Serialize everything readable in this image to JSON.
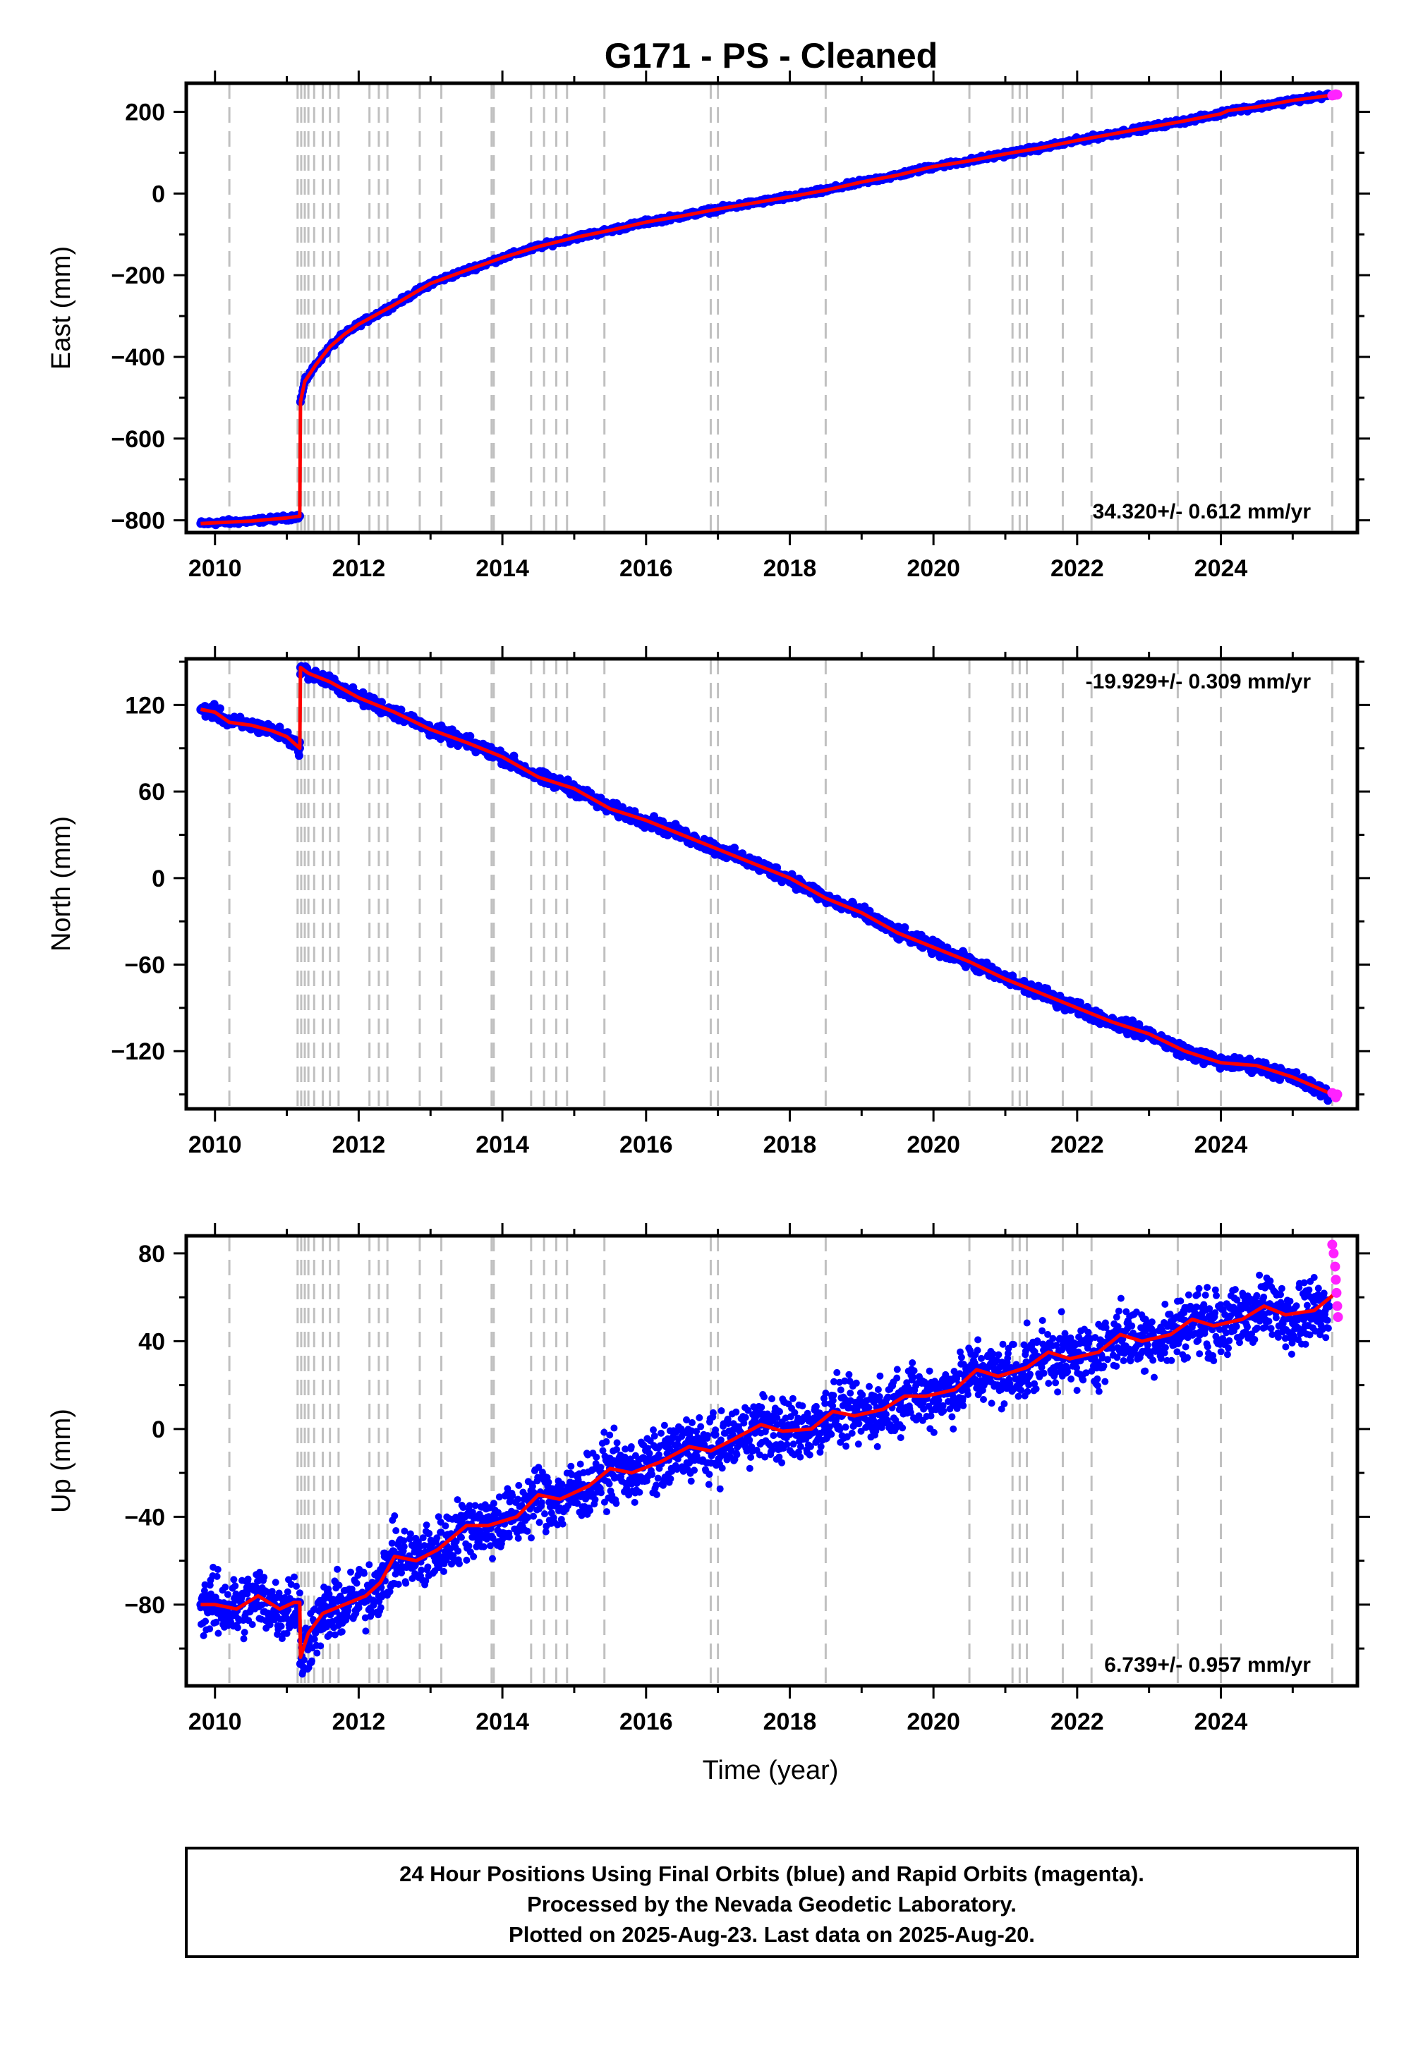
{
  "title": "G171  - PS - Cleaned",
  "colors": {
    "final_orbits": "#0000ff",
    "rapid_orbits": "#ff22ff",
    "model": "#ff0000",
    "events": "#c0c0c0"
  },
  "chart_data": [
    {
      "type": "scatter",
      "panel": "east",
      "ylabel": "East (mm)",
      "xlabel": "",
      "xlim": [
        2009.6,
        2025.9
      ],
      "ylim": [
        -830,
        270
      ],
      "xticks": [
        2010,
        2012,
        2014,
        2016,
        2018,
        2020,
        2022,
        2024
      ],
      "yticks": [
        -800,
        -600,
        -400,
        -200,
        0,
        200
      ],
      "rate_label": "34.320+/- 0.612 mm/yr",
      "rate_position": "bottom-right",
      "series": [
        {
          "name": "24 Hour Positions (final orbits)",
          "color": "#0000ff",
          "x": [
            2009.8,
            2010.0,
            2010.5,
            2011.0,
            2011.18,
            2011.19,
            2011.25,
            2011.4,
            2011.6,
            2011.8,
            2012.0,
            2012.5,
            2013.0,
            2013.5,
            2014.0,
            2014.5,
            2015.0,
            2015.5,
            2016.0,
            2016.5,
            2017.0,
            2017.5,
            2018.0,
            2018.5,
            2019.0,
            2019.5,
            2020.0,
            2020.5,
            2021.0,
            2021.5,
            2022.0,
            2022.5,
            2023.0,
            2023.5,
            2024.0,
            2024.1,
            2024.5,
            2025.0,
            2025.5
          ],
          "y": [
            -808,
            -806,
            -802,
            -794,
            -790,
            -510,
            -460,
            -420,
            -375,
            -345,
            -320,
            -272,
            -220,
            -188,
            -157,
            -130,
            -108,
            -90,
            -70,
            -55,
            -38,
            -23,
            -8,
            8,
            28,
            45,
            66,
            80,
            97,
            112,
            130,
            146,
            162,
            178,
            195,
            203,
            212,
            228,
            240
          ]
        },
        {
          "name": "24 Hour Positions (rapid orbits)",
          "color": "#ff22ff",
          "x": [
            2025.55,
            2025.58,
            2025.6,
            2025.62
          ],
          "y": [
            240,
            241,
            243,
            242
          ]
        },
        {
          "name": "model",
          "color": "#ff0000",
          "x": [
            2009.8,
            2010.0,
            2010.5,
            2011.0,
            2011.18,
            2011.19,
            2011.25,
            2011.4,
            2011.6,
            2011.8,
            2012.0,
            2012.5,
            2013.0,
            2013.5,
            2014.0,
            2014.5,
            2015.0,
            2015.5,
            2016.0,
            2016.5,
            2017.0,
            2017.5,
            2018.0,
            2018.5,
            2019.0,
            2019.5,
            2020.0,
            2020.5,
            2021.0,
            2021.5,
            2022.0,
            2022.5,
            2023.0,
            2023.5,
            2024.0,
            2024.1,
            2024.5,
            2025.0,
            2025.6
          ],
          "y": [
            -808,
            -806,
            -802,
            -794,
            -790,
            -510,
            -460,
            -420,
            -375,
            -345,
            -320,
            -272,
            -220,
            -188,
            -157,
            -130,
            -108,
            -90,
            -70,
            -55,
            -38,
            -23,
            -8,
            8,
            28,
            45,
            66,
            80,
            97,
            112,
            130,
            146,
            162,
            178,
            195,
            203,
            212,
            228,
            242
          ]
        }
      ]
    },
    {
      "type": "scatter",
      "panel": "north",
      "ylabel": "North (mm)",
      "xlabel": "",
      "xlim": [
        2009.6,
        2025.9
      ],
      "ylim": [
        -160,
        152
      ],
      "xticks": [
        2010,
        2012,
        2014,
        2016,
        2018,
        2020,
        2022,
        2024
      ],
      "yticks": [
        -120,
        -60,
        0,
        60,
        120
      ],
      "rate_label": "-19.929+/- 0.309 mm/yr",
      "rate_position": "top-right",
      "series": [
        {
          "name": "24 Hour Positions (final orbits)",
          "color": "#0000ff",
          "x": [
            2009.8,
            2010.0,
            2010.2,
            2010.5,
            2010.8,
            2011.0,
            2011.18,
            2011.19,
            2011.3,
            2011.6,
            2012.0,
            2012.5,
            2013.0,
            2013.5,
            2014.0,
            2014.5,
            2015.0,
            2015.5,
            2016.0,
            2016.5,
            2017.0,
            2017.5,
            2018.0,
            2018.5,
            2019.0,
            2019.5,
            2020.0,
            2020.5,
            2021.0,
            2021.5,
            2022.0,
            2022.5,
            2023.0,
            2023.5,
            2024.0,
            2024.5,
            2025.0,
            2025.5
          ],
          "y": [
            117,
            115,
            108,
            106,
            102,
            98,
            90,
            146,
            142,
            136,
            125,
            115,
            103,
            94,
            84,
            70,
            62,
            48,
            40,
            30,
            20,
            10,
            0,
            -14,
            -24,
            -38,
            -48,
            -58,
            -70,
            -80,
            -90,
            -100,
            -108,
            -120,
            -128,
            -130,
            -138,
            -150
          ]
        },
        {
          "name": "24 Hour Positions (rapid orbits)",
          "color": "#ff22ff",
          "x": [
            2025.55,
            2025.58,
            2025.6,
            2025.62
          ],
          "y": [
            -149,
            -150,
            -152,
            -150
          ]
        },
        {
          "name": "model",
          "color": "#ff0000",
          "x": [
            2009.8,
            2010.0,
            2010.2,
            2010.5,
            2010.8,
            2011.0,
            2011.18,
            2011.19,
            2011.3,
            2011.6,
            2012.0,
            2012.5,
            2013.0,
            2013.5,
            2014.0,
            2014.5,
            2015.0,
            2015.5,
            2016.0,
            2016.5,
            2017.0,
            2017.5,
            2018.0,
            2018.5,
            2019.0,
            2019.5,
            2020.0,
            2020.5,
            2021.0,
            2021.5,
            2022.0,
            2022.5,
            2023.0,
            2023.5,
            2024.0,
            2024.5,
            2025.0,
            2025.6
          ],
          "y": [
            117,
            115,
            108,
            106,
            102,
            98,
            90,
            146,
            142,
            136,
            125,
            115,
            103,
            94,
            84,
            70,
            62,
            48,
            40,
            30,
            20,
            10,
            0,
            -14,
            -24,
            -38,
            -48,
            -58,
            -70,
            -80,
            -90,
            -100,
            -108,
            -120,
            -128,
            -130,
            -138,
            -151
          ]
        }
      ]
    },
    {
      "type": "scatter",
      "panel": "up",
      "ylabel": "Up (mm)",
      "xlabel": "Time (year)",
      "xlim": [
        2009.6,
        2025.9
      ],
      "ylim": [
        -117,
        88
      ],
      "xticks": [
        2010,
        2012,
        2014,
        2016,
        2018,
        2020,
        2022,
        2024
      ],
      "yticks": [
        -80,
        -40,
        0,
        40,
        80
      ],
      "rate_label": "6.739+/- 0.957 mm/yr",
      "rate_position": "bottom-right",
      "series": [
        {
          "name": "24 Hour Positions (final orbits)",
          "color": "#0000ff",
          "x": [
            2009.8,
            2010.0,
            2010.3,
            2010.6,
            2010.9,
            2011.1,
            2011.18,
            2011.19,
            2011.3,
            2011.5,
            2011.8,
            2012.1,
            2012.3,
            2012.5,
            2012.8,
            2013.1,
            2013.5,
            2013.8,
            2014.2,
            2014.5,
            2014.8,
            2015.2,
            2015.5,
            2015.8,
            2016.2,
            2016.6,
            2016.9,
            2017.2,
            2017.6,
            2017.9,
            2018.3,
            2018.6,
            2018.9,
            2019.3,
            2019.6,
            2019.9,
            2020.3,
            2020.6,
            2020.9,
            2021.3,
            2021.6,
            2021.9,
            2022.3,
            2022.6,
            2022.9,
            2023.3,
            2023.6,
            2023.9,
            2024.3,
            2024.6,
            2024.9,
            2025.3,
            2025.5
          ],
          "y": [
            -80,
            -80,
            -82,
            -76,
            -82,
            -79,
            -79,
            -107,
            -95,
            -85,
            -80,
            -76,
            -70,
            -58,
            -60,
            -55,
            -44,
            -44,
            -40,
            -30,
            -32,
            -26,
            -18,
            -20,
            -15,
            -8,
            -10,
            -5,
            2,
            -1,
            0,
            8,
            6,
            9,
            15,
            15,
            18,
            27,
            24,
            28,
            35,
            32,
            35,
            43,
            40,
            43,
            50,
            47,
            50,
            56,
            52,
            54,
            56
          ]
        },
        {
          "name": "24 Hour Positions (rapid orbits)",
          "color": "#ff22ff",
          "x": [
            2025.55,
            2025.57,
            2025.59,
            2025.6,
            2025.61,
            2025.62,
            2025.63
          ],
          "y": [
            84,
            80,
            74,
            68,
            62,
            56,
            51
          ]
        },
        {
          "name": "model",
          "color": "#ff0000",
          "x": [
            2009.8,
            2010.0,
            2010.3,
            2010.6,
            2010.9,
            2011.1,
            2011.18,
            2011.19,
            2011.3,
            2011.5,
            2011.8,
            2012.1,
            2012.3,
            2012.5,
            2012.8,
            2013.1,
            2013.5,
            2013.8,
            2014.2,
            2014.5,
            2014.8,
            2015.2,
            2015.5,
            2015.8,
            2016.2,
            2016.6,
            2016.9,
            2017.2,
            2017.6,
            2017.9,
            2018.3,
            2018.6,
            2018.9,
            2019.3,
            2019.6,
            2019.9,
            2020.3,
            2020.6,
            2020.9,
            2021.3,
            2021.6,
            2021.9,
            2022.3,
            2022.6,
            2022.9,
            2023.3,
            2023.6,
            2023.9,
            2024.3,
            2024.6,
            2024.9,
            2025.3,
            2025.6
          ],
          "y": [
            -80,
            -80,
            -82,
            -76,
            -82,
            -79,
            -79,
            -104,
            -93,
            -84,
            -80,
            -76,
            -70,
            -58,
            -60,
            -55,
            -44,
            -44,
            -40,
            -30,
            -32,
            -26,
            -18,
            -20,
            -15,
            -8,
            -10,
            -5,
            2,
            -1,
            0,
            8,
            6,
            9,
            15,
            15,
            18,
            27,
            24,
            28,
            35,
            32,
            35,
            43,
            40,
            43,
            50,
            47,
            50,
            56,
            52,
            54,
            62
          ]
        }
      ]
    }
  ],
  "event_years": [
    2010.2,
    2011.15,
    2011.2,
    2011.25,
    2011.3,
    2011.38,
    2011.5,
    2011.6,
    2011.72,
    2012.15,
    2012.28,
    2012.4,
    2012.85,
    2013.15,
    2013.85,
    2013.88,
    2014.4,
    2014.58,
    2014.75,
    2014.9,
    2015.42,
    2016.9,
    2017.0,
    2018.5,
    2020.5,
    2021.1,
    2021.2,
    2021.3,
    2021.8,
    2022.2,
    2023.4,
    2024.0,
    2025.55
  ],
  "footer": {
    "line1": "24 Hour Positions Using Final Orbits (blue) and Rapid Orbits (magenta).",
    "line2": "Processed by the Nevada Geodetic Laboratory.",
    "line3": "Plotted on 2025-Aug-23. Last data on 2025-Aug-20."
  }
}
